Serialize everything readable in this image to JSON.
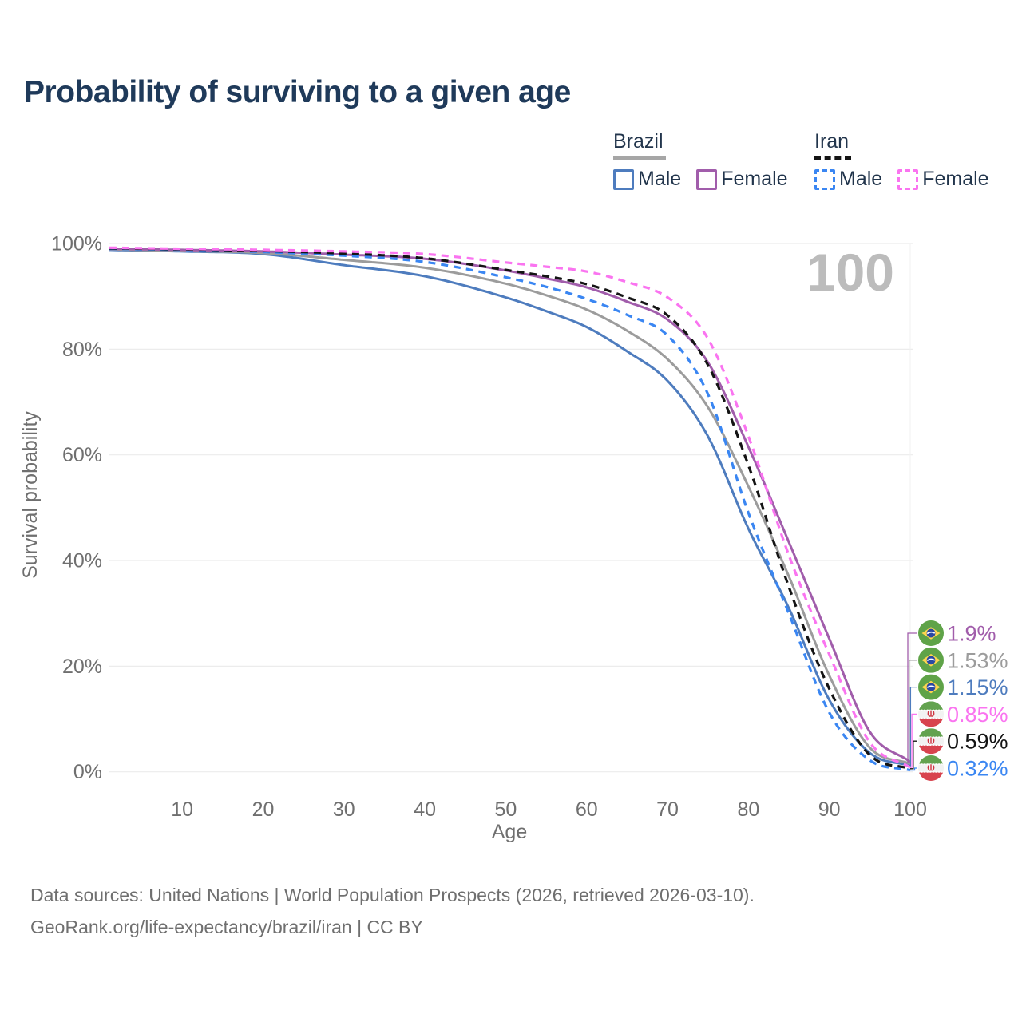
{
  "title": "Probability of surviving to a given age",
  "watermark": "100",
  "colors": {
    "title": "#1f3a5a",
    "axis_text": "#6f6f6f",
    "gridline": "#ececec",
    "watermark": "#bcbcbc",
    "brazil_male": "#4e7cbe",
    "brazil_total": "#9c9c9c",
    "brazil_female": "#a15dab",
    "iran_male": "#3a86f2",
    "iran_total": "#141414",
    "iran_female": "#fa74f0"
  },
  "legend": {
    "groups": [
      {
        "label": "Brazil",
        "line_style": "solid",
        "underline_color": "#a6a6a6",
        "items": [
          {
            "label": "Male",
            "color": "#4e7cbe"
          },
          {
            "label": "Female",
            "color": "#a15dab"
          }
        ]
      },
      {
        "label": "Iran",
        "line_style": "dashed",
        "underline_color": "#141414",
        "items": [
          {
            "label": "Male",
            "color": "#3a86f2"
          },
          {
            "label": "Female",
            "color": "#fa74f0"
          }
        ]
      }
    ]
  },
  "footer": {
    "line1": "Data sources: United Nations | World Population Prospects (2026, retrieved 2026-03-10).",
    "line2": "GeoRank.org/life-expectancy/brazil/iran | CC BY"
  },
  "chart_data": {
    "type": "line",
    "title": "Probability of surviving to a given age",
    "xlabel": "Age",
    "ylabel": "Survival probability",
    "xlim": [
      1,
      100
    ],
    "ylim": [
      0,
      100
    ],
    "grid": "horizontal",
    "legend_position": "top-right",
    "watermark_frame": "100",
    "x_ticks": [
      10,
      20,
      30,
      40,
      50,
      60,
      70,
      80,
      90,
      100
    ],
    "y_ticks": [
      {
        "v": 100,
        "label": "100%"
      },
      {
        "v": 80,
        "label": "80%"
      },
      {
        "v": 60,
        "label": "60%"
      },
      {
        "v": 40,
        "label": "40%"
      },
      {
        "v": 20,
        "label": "20%"
      },
      {
        "v": 0,
        "label": "0%"
      }
    ],
    "ages": [
      1,
      10,
      20,
      30,
      40,
      50,
      55,
      60,
      65,
      70,
      75,
      80,
      85,
      90,
      95,
      100
    ],
    "series": [
      {
        "name": "Brazil Male",
        "country": "Brazil",
        "sex": "Male",
        "color": "#4e7cbe",
        "line_style": "solid",
        "flag": "brazil-flag-icon",
        "end_label": "1.15%",
        "end_value": 1.15,
        "label_row": 2,
        "values": [
          98.8,
          98.5,
          98.0,
          95.9,
          93.8,
          89.8,
          87.2,
          84.2,
          79.6,
          74.0,
          63.5,
          46.0,
          31.0,
          13.6,
          3.6,
          1.15
        ]
      },
      {
        "name": "Brazil Total",
        "country": "Brazil",
        "sex": "Both sexes",
        "color": "#9c9c9c",
        "line_style": "solid",
        "flag": "brazil-flag-icon",
        "end_label": "1.53%",
        "end_value": 1.53,
        "label_row": 1,
        "values": [
          98.9,
          98.6,
          98.2,
          96.9,
          95.4,
          92.4,
          90.2,
          87.5,
          83.5,
          78.1,
          69.0,
          54.0,
          37.0,
          18.2,
          4.6,
          1.53
        ]
      },
      {
        "name": "Brazil Female",
        "country": "Brazil",
        "sex": "Female",
        "color": "#a15dab",
        "line_style": "solid",
        "flag": "brazil-flag-icon",
        "end_label": "1.9%",
        "end_value": 1.9,
        "label_row": 0,
        "values": [
          99.0,
          98.8,
          98.5,
          97.9,
          97.1,
          94.9,
          93.4,
          91.7,
          89.0,
          85.6,
          77.5,
          61.5,
          43.5,
          25.2,
          7.6,
          1.9
        ]
      },
      {
        "name": "Iran Male",
        "country": "Iran",
        "sex": "Male",
        "color": "#3a86f2",
        "line_style": "dashed",
        "flag": "iran-flag-icon",
        "end_label": "0.32%",
        "end_value": 0.32,
        "label_row": 5,
        "values": [
          99.0,
          98.8,
          98.4,
          97.7,
          96.5,
          93.6,
          91.8,
          89.5,
          86.5,
          82.6,
          71.5,
          49.0,
          30.0,
          11.2,
          2.2,
          0.32
        ]
      },
      {
        "name": "Iran Total",
        "country": "Iran",
        "sex": "Both sexes",
        "color": "#141414",
        "line_style": "dashed",
        "flag": "iran-flag-icon",
        "end_label": "0.59%",
        "end_value": 0.59,
        "label_row": 4,
        "values": [
          99.1,
          98.9,
          98.6,
          98.1,
          97.2,
          95.0,
          93.8,
          92.3,
          89.8,
          86.4,
          77.0,
          58.0,
          35.0,
          15.7,
          3.2,
          0.59
        ]
      },
      {
        "name": "Iran Female",
        "country": "Iran",
        "sex": "Female",
        "color": "#fa74f0",
        "line_style": "dashed",
        "flag": "iran-flag-icon",
        "end_label": "0.85%",
        "end_value": 0.85,
        "label_row": 3,
        "values": [
          99.2,
          99.0,
          98.8,
          98.5,
          98.0,
          96.4,
          95.6,
          94.7,
          92.7,
          89.8,
          82.0,
          63.5,
          41.0,
          22.2,
          5.6,
          0.85
        ]
      }
    ]
  }
}
